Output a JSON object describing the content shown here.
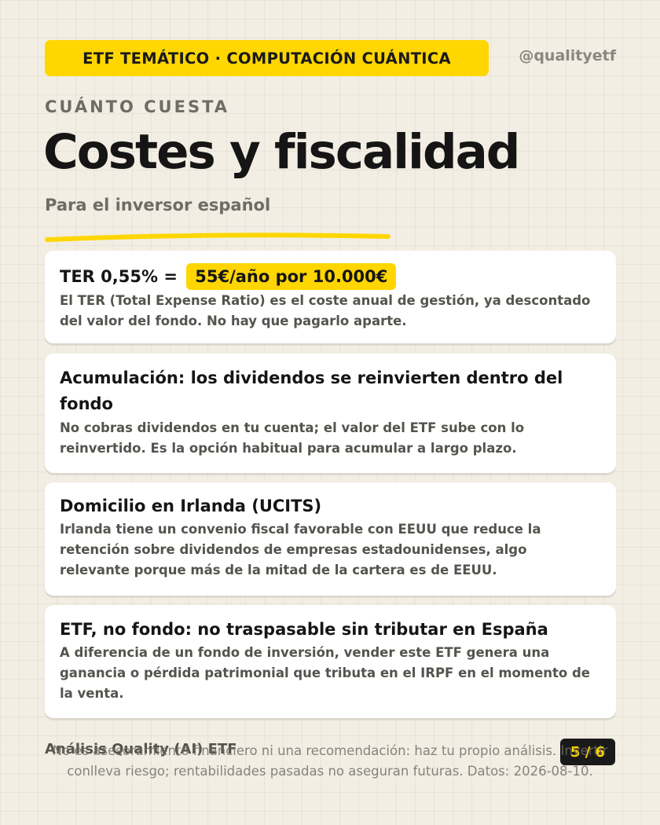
{
  "header": {
    "tag": "ETF TEMÁTICO · COMPUTACIÓN CUÁNTICA",
    "handle": "@qualityetf",
    "kicker": "CUÁNTO CUESTA",
    "title": "Costes y fiscalidad",
    "subtitle": "Para el inversor español"
  },
  "cards": [
    {
      "head_prefix": "TER 0,55% =",
      "highlight": "55€/año por 10.000€",
      "body": "El TER (Total Expense Ratio) es el coste anual de gestión, ya descontado del valor del fondo. No hay que pagarlo aparte."
    },
    {
      "head": "Acumulación: los dividendos se reinvierten dentro del fondo",
      "body": "No cobras dividendos en tu cuenta; el valor del ETF sube con lo reinvertido. Es la opción habitual para acumular a largo plazo."
    },
    {
      "head": "Domicilio en Irlanda (UCITS)",
      "body": "Irlanda tiene un convenio fiscal favorable con EEUU que reduce la retención sobre dividendos de empresas estadounidenses, algo relevante porque más de la mitad de la cartera es de EEUU."
    },
    {
      "head": "ETF, no fondo: no traspasable sin tributar en España",
      "body": "A diferencia de un fondo de inversión, vender este ETF genera una ganancia o pérdida patrimonial que tributa en el IRPF en el momento de la venta."
    }
  ],
  "footer": {
    "brand": "Análisis Quality (AI) ETF",
    "page": "5 / 6",
    "disclaimer": "No es asesoramiento financiero ni una recomendación: haz tu propio análisis. Invertir conlleva riesgo; rentabilidades pasadas no aseguran futuras. Datos: 2026-08-10."
  },
  "colors": {
    "accent": "#ffd600",
    "background": "#f2eee3",
    "text": "#1a1a1a",
    "muted": "#6e6c66"
  }
}
